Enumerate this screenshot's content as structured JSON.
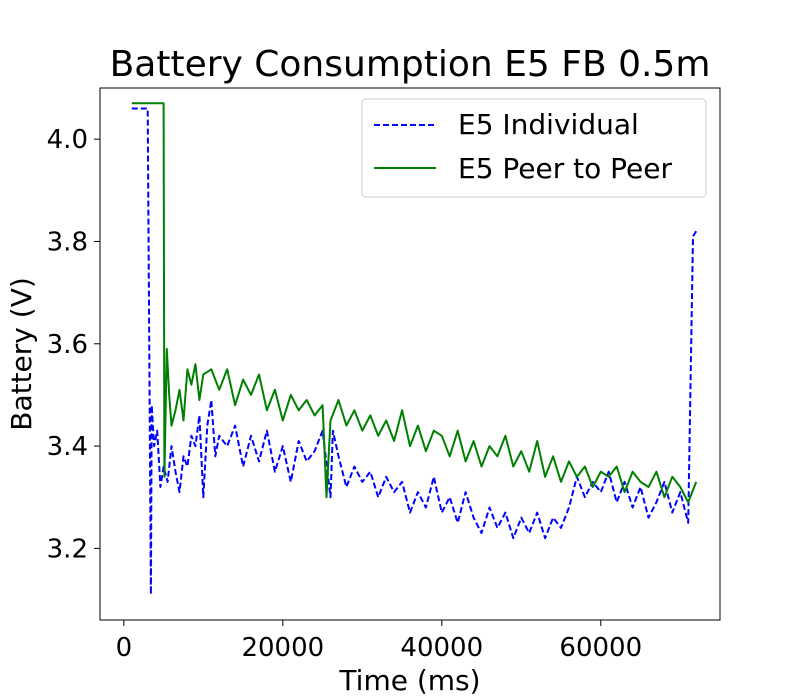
{
  "chart_data": {
    "type": "line",
    "title": "Battery Consumption E5 FB 0.5m",
    "xlabel": "Time (ms)",
    "ylabel": "Battery (V)",
    "xlim": [
      -3000,
      75000
    ],
    "ylim": [
      3.06,
      4.1
    ],
    "xticks": [
      0,
      20000,
      40000,
      60000
    ],
    "yticks": [
      3.2,
      3.4,
      3.6,
      3.8,
      4.0
    ],
    "xtick_labels": [
      "0",
      "20000",
      "40000",
      "60000"
    ],
    "ytick_labels": [
      "3.2",
      "3.4",
      "3.6",
      "3.8",
      "4.0"
    ],
    "legend": {
      "position": "top-right"
    },
    "series": [
      {
        "name": "E5 Individual",
        "color": "#0000ff",
        "style": "dashed",
        "x": [
          1000,
          1500,
          2500,
          3000,
          3400,
          3500,
          3800,
          4200,
          4600,
          5000,
          5500,
          6000,
          6500,
          7000,
          7500,
          8000,
          8500,
          9000,
          9500,
          10000,
          10500,
          11000,
          11500,
          12000,
          13000,
          14000,
          15000,
          16000,
          17000,
          18000,
          19000,
          20000,
          21000,
          22000,
          23000,
          24000,
          25000,
          26000,
          26300,
          27000,
          28000,
          29000,
          30000,
          31000,
          32000,
          33000,
          34000,
          35000,
          36000,
          37000,
          38000,
          39000,
          40000,
          41000,
          42000,
          43000,
          44000,
          45000,
          46000,
          47000,
          48000,
          49000,
          50000,
          51000,
          52000,
          53000,
          54000,
          55000,
          56000,
          57000,
          58000,
          59000,
          60000,
          61000,
          62000,
          63000,
          64000,
          65000,
          66000,
          67000,
          68000,
          69000,
          70000,
          71000,
          71600,
          72000
        ],
        "values": [
          4.06,
          4.06,
          4.06,
          4.06,
          3.11,
          3.48,
          3.4,
          3.43,
          3.32,
          3.36,
          3.33,
          3.4,
          3.35,
          3.31,
          3.38,
          3.36,
          3.42,
          3.4,
          3.46,
          3.3,
          3.44,
          3.49,
          3.38,
          3.42,
          3.4,
          3.44,
          3.36,
          3.42,
          3.37,
          3.43,
          3.35,
          3.4,
          3.33,
          3.41,
          3.37,
          3.39,
          3.43,
          3.3,
          3.43,
          3.38,
          3.32,
          3.36,
          3.33,
          3.35,
          3.3,
          3.34,
          3.31,
          3.33,
          3.27,
          3.31,
          3.28,
          3.34,
          3.27,
          3.3,
          3.25,
          3.31,
          3.26,
          3.23,
          3.28,
          3.24,
          3.27,
          3.22,
          3.26,
          3.23,
          3.27,
          3.22,
          3.26,
          3.24,
          3.28,
          3.34,
          3.3,
          3.33,
          3.31,
          3.35,
          3.29,
          3.33,
          3.28,
          3.32,
          3.26,
          3.29,
          3.33,
          3.27,
          3.31,
          3.25,
          3.81,
          3.82
        ]
      },
      {
        "name": "E5 Peer to Peer",
        "color": "#008000",
        "style": "solid",
        "x": [
          1000,
          2000,
          3000,
          4000,
          5000,
          5100,
          5400,
          5700,
          6000,
          6500,
          7000,
          7500,
          8000,
          8500,
          9000,
          9500,
          10000,
          11000,
          12000,
          13000,
          14000,
          15000,
          16000,
          17000,
          18000,
          19000,
          20000,
          21000,
          22000,
          23000,
          24000,
          25000,
          25500,
          26000,
          27000,
          28000,
          29000,
          30000,
          31000,
          32000,
          33000,
          34000,
          35000,
          36000,
          37000,
          38000,
          39000,
          40000,
          41000,
          42000,
          43000,
          44000,
          45000,
          46000,
          47000,
          48000,
          49000,
          50000,
          51000,
          52000,
          53000,
          54000,
          55000,
          56000,
          57000,
          58000,
          59000,
          60000,
          61000,
          62000,
          63000,
          64000,
          65000,
          66000,
          67000,
          68000,
          69000,
          70000,
          71000,
          72000
        ],
        "values": [
          4.07,
          4.07,
          4.07,
          4.07,
          4.07,
          3.34,
          3.59,
          3.5,
          3.44,
          3.47,
          3.51,
          3.45,
          3.55,
          3.52,
          3.56,
          3.49,
          3.54,
          3.55,
          3.51,
          3.55,
          3.48,
          3.53,
          3.5,
          3.54,
          3.47,
          3.51,
          3.45,
          3.5,
          3.47,
          3.49,
          3.46,
          3.48,
          3.3,
          3.45,
          3.49,
          3.44,
          3.47,
          3.43,
          3.46,
          3.42,
          3.45,
          3.41,
          3.47,
          3.4,
          3.44,
          3.39,
          3.43,
          3.42,
          3.38,
          3.43,
          3.37,
          3.41,
          3.36,
          3.4,
          3.38,
          3.42,
          3.36,
          3.39,
          3.35,
          3.41,
          3.34,
          3.38,
          3.33,
          3.37,
          3.34,
          3.36,
          3.32,
          3.35,
          3.34,
          3.36,
          3.31,
          3.35,
          3.33,
          3.32,
          3.35,
          3.3,
          3.34,
          3.32,
          3.29,
          3.33
        ]
      }
    ]
  }
}
